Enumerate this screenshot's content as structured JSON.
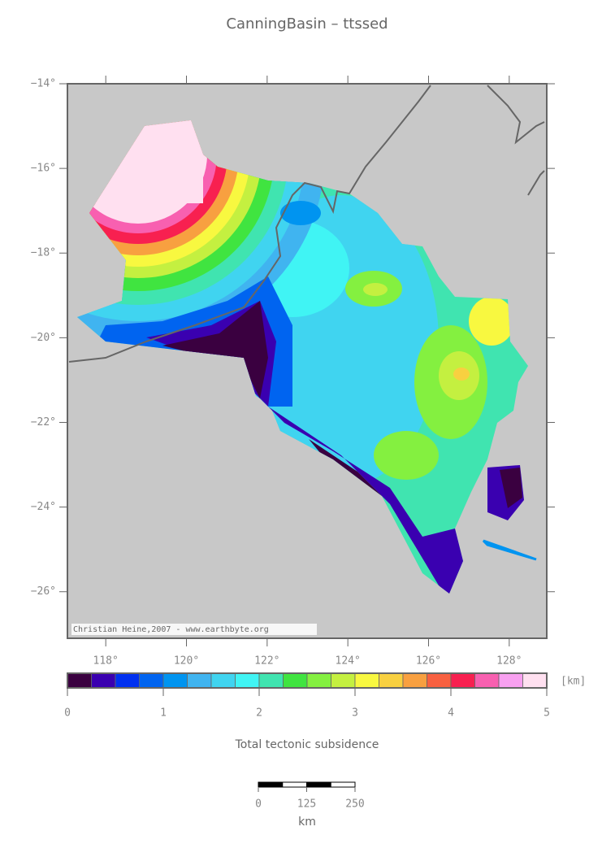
{
  "title": "CanningBasin – ttssed",
  "map": {
    "xlim": [
      117.05,
      128.93
    ],
    "ylim": [
      -27.1,
      -14
    ],
    "xticks": [
      {
        "value": 118,
        "label": "118°"
      },
      {
        "value": 120,
        "label": "120°"
      },
      {
        "value": 122,
        "label": "122°"
      },
      {
        "value": 124,
        "label": "124°"
      },
      {
        "value": 126,
        "label": "126°"
      },
      {
        "value": 128,
        "label": "128°"
      }
    ],
    "yticks": [
      {
        "value": -14,
        "label": "−14°"
      },
      {
        "value": -16,
        "label": "−16°"
      },
      {
        "value": -18,
        "label": "−18°"
      },
      {
        "value": -20,
        "label": "−20°"
      },
      {
        "value": -22,
        "label": "−22°"
      },
      {
        "value": -24,
        "label": "−24°"
      },
      {
        "value": -26,
        "label": "−26°"
      }
    ],
    "credit": "Christian Heine,2007 - www.earthbyte.org"
  },
  "colorbar": {
    "range": [
      0,
      5
    ],
    "ticks": [
      0,
      1,
      2,
      3,
      4,
      5
    ],
    "unit": "[km]",
    "label": "Total tectonic subsidence",
    "colors": [
      "#3a0040",
      "#3a00b0",
      "#0030f0",
      "#0064f0",
      "#0094f0",
      "#40b4f0",
      "#40d4f0",
      "#40f4f4",
      "#40e4b0",
      "#40e440",
      "#84f040",
      "#c4f040",
      "#f8f840",
      "#f8d040",
      "#f8a040",
      "#f86040",
      "#f82050",
      "#f860b0",
      "#f8a0f0",
      "#ffe0f0"
    ]
  },
  "scalebar": {
    "range": [
      0,
      250
    ],
    "ticks": [
      0,
      125,
      250
    ],
    "unit": "km"
  }
}
